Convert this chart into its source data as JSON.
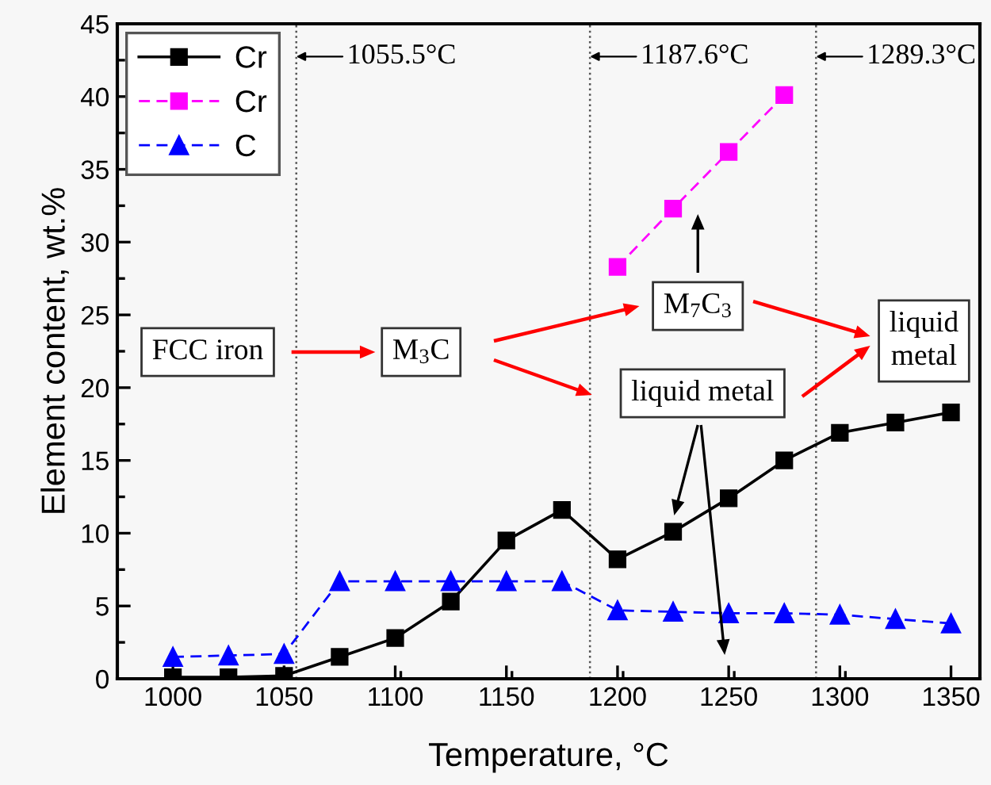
{
  "chart_data": {
    "type": "line",
    "xlabel": "Temperature, °C",
    "ylabel": "Element content, wt.%",
    "x": [
      1000,
      1025,
      1050,
      1075,
      1100,
      1125,
      1150,
      1175,
      1200,
      1225,
      1250,
      1275,
      1300,
      1325,
      1350
    ],
    "series": [
      {
        "name": "Cr",
        "color": "#000000",
        "marker": "square",
        "line_style": "solid",
        "values": [
          0.1,
          0.1,
          0.2,
          1.5,
          2.8,
          5.3,
          9.5,
          11.6,
          8.2,
          10.1,
          12.4,
          15.0,
          16.9,
          17.6,
          18.3
        ]
      },
      {
        "name": "Cr",
        "color": "#ff00ff",
        "marker": "square",
        "line_style": "dashed",
        "x": [
          1200,
          1225,
          1250,
          1275
        ],
        "values": [
          28.3,
          32.3,
          36.2,
          40.1
        ]
      },
      {
        "name": "C",
        "color": "#0000ff",
        "marker": "triangle",
        "line_style": "dashed",
        "values": [
          1.5,
          1.6,
          1.7,
          6.7,
          6.7,
          6.7,
          6.7,
          6.7,
          4.7,
          4.6,
          4.5,
          4.5,
          4.4,
          4.1,
          3.8
        ]
      }
    ],
    "xlim": [
      975,
      1363
    ],
    "xticks": [
      1000,
      1050,
      1100,
      1150,
      1200,
      1250,
      1300,
      1350
    ],
    "ylim": [
      0,
      45
    ],
    "yticks": [
      0,
      5,
      10,
      15,
      20,
      25,
      30,
      35,
      40,
      45
    ],
    "ref_lines": [
      {
        "axis": "x",
        "value": 1055.5,
        "label": "1055.5°C",
        "color": "#555555",
        "line_style": "dotted"
      },
      {
        "axis": "x",
        "value": 1187.6,
        "label": "1187.6°C",
        "color": "#555555",
        "line_style": "dotted"
      },
      {
        "axis": "x",
        "value": 1289.3,
        "label": "1289.3°C",
        "color": "#555555",
        "line_style": "dotted"
      }
    ],
    "annotations": [
      "FCC iron",
      "M$_{3}$C",
      "M$_{7}$C$_{3}$",
      "liquid metal",
      "liquid\nmetal"
    ],
    "grid": false,
    "legend": "top left"
  }
}
